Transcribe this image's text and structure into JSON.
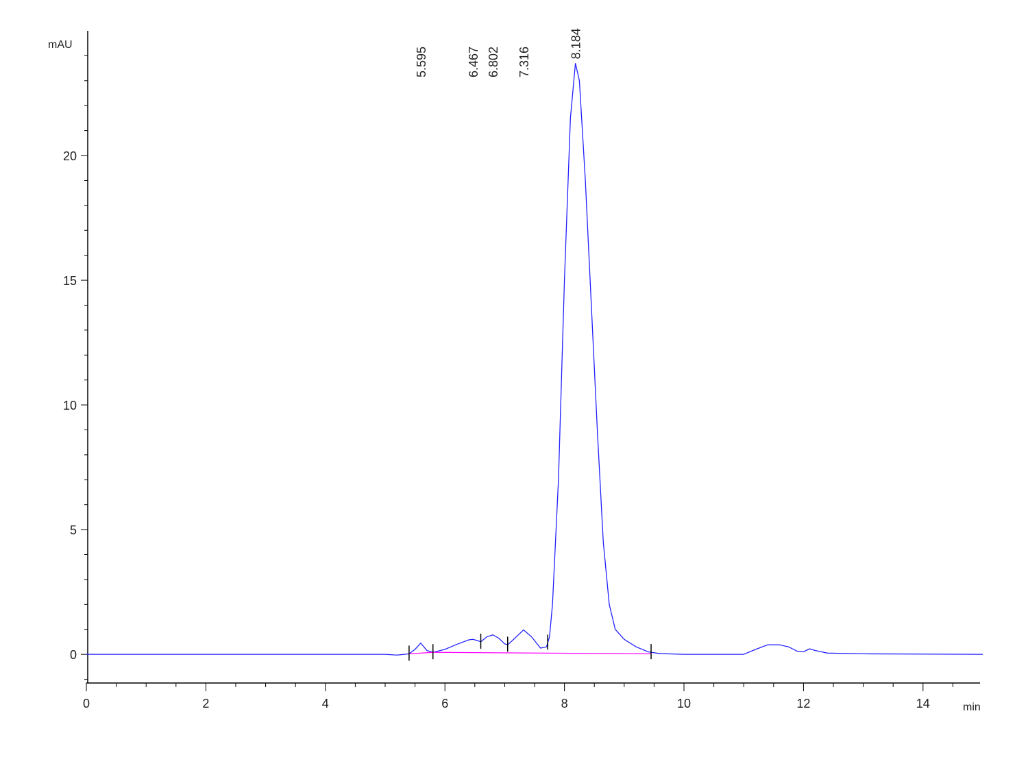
{
  "chart_data": {
    "type": "line",
    "y_label": "mAU",
    "x_label": "min",
    "xlim": [
      0,
      15
    ],
    "ylim": [
      -1.15,
      25
    ],
    "xticks": [
      0,
      2,
      4,
      6,
      8,
      10,
      12,
      14
    ],
    "yticks": [
      0,
      5,
      10,
      15,
      20
    ],
    "xminorticks": [
      0.5,
      1,
      1.5,
      2.5,
      3,
      3.5,
      4.5,
      5,
      5.5,
      6.5,
      7,
      7.5,
      8.5,
      9,
      9.5,
      10.5,
      11,
      11.5,
      12.5,
      13,
      13.5,
      14.5
    ],
    "yminorticks": [
      -1,
      1,
      2,
      3,
      4,
      6,
      7,
      8,
      9,
      11,
      12,
      13,
      14,
      16,
      17,
      18,
      19,
      21,
      22,
      23,
      24
    ],
    "series": [
      {
        "color": "#2020ff",
        "x": [
          0,
          5.0,
          5.2,
          5.4,
          5.5,
          5.595,
          5.7,
          5.8,
          6.0,
          6.2,
          6.4,
          6.467,
          6.55,
          6.6,
          6.7,
          6.802,
          6.9,
          7.0,
          7.05,
          7.15,
          7.316,
          7.45,
          7.6,
          7.7,
          7.75,
          7.8,
          7.9,
          8.0,
          8.1,
          8.184,
          8.25,
          8.35,
          8.45,
          8.55,
          8.65,
          8.75,
          8.85,
          9.0,
          9.2,
          9.4,
          9.6,
          10.0,
          11.0,
          11.2,
          11.4,
          11.6,
          11.75,
          11.9,
          12.0,
          12.1,
          12.2,
          12.4,
          13.0,
          15.0
        ],
        "values": [
          0,
          0,
          -0.03,
          0.02,
          0.2,
          0.45,
          0.15,
          0.08,
          0.2,
          0.4,
          0.58,
          0.6,
          0.55,
          0.5,
          0.7,
          0.78,
          0.65,
          0.42,
          0.38,
          0.6,
          0.98,
          0.7,
          0.25,
          0.3,
          0.7,
          2.0,
          7.0,
          15.0,
          21.5,
          23.7,
          23.0,
          19.0,
          14.0,
          9.0,
          4.5,
          2.0,
          1.0,
          0.6,
          0.3,
          0.1,
          0.03,
          0,
          0,
          0.2,
          0.38,
          0.38,
          0.3,
          0.12,
          0.1,
          0.22,
          0.15,
          0.05,
          0.02,
          0
        ]
      },
      {
        "color": "#ff00ff",
        "x": [
          5.4,
          5.8,
          9.45
        ],
        "values": [
          0.02,
          0.08,
          0.02
        ]
      }
    ],
    "peak_labels": [
      5.595,
      6.467,
      6.802,
      7.316,
      8.184
    ],
    "peak_boundaries": [
      5.4,
      5.8,
      6.6,
      7.05,
      7.72,
      9.45
    ]
  }
}
